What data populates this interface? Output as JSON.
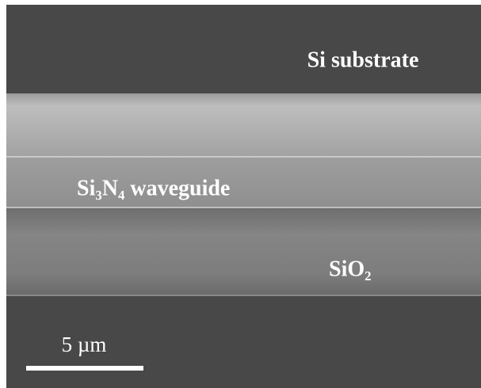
{
  "labels": {
    "substrate": "Si substrate",
    "waveguide": "Si₃N₄ waveguide",
    "oxide": "SiO₂"
  },
  "scale_bar": {
    "label": "5 µm"
  }
}
